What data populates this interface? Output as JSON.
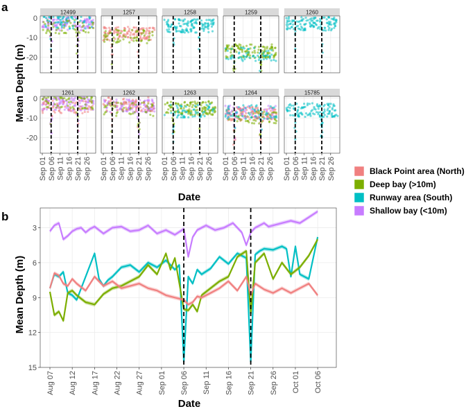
{
  "colors": {
    "north": "#F08080",
    "deep": "#7CAE00",
    "runway": "#00BFC4",
    "shallow": "#C77CFF",
    "strip_bg": "#d9d9d9",
    "grid": "#ebebeb",
    "panel_border": "#333333"
  },
  "legend": [
    {
      "key": "north",
      "label": "Black Point area (North)"
    },
    {
      "key": "deep",
      "label": "Deep bay (>10m)"
    },
    {
      "key": "runway",
      "label": "Runway area (South)"
    },
    {
      "key": "shallow",
      "label": "Shallow bay (<10m)"
    }
  ],
  "chart_data": [
    {
      "panel": "a",
      "type": "scatter",
      "facets": [
        "12499",
        "1257",
        "1258",
        "1259",
        "1260",
        "1261",
        "1262",
        "1263",
        "1264",
        "15785"
      ],
      "facet_group": {
        "12499": [
          "shallow",
          "deep",
          "runway"
        ],
        "1257": [
          "north",
          "deep"
        ],
        "1258": [
          "runway"
        ],
        "1259": [
          "deep",
          "runway"
        ],
        "1260": [
          "runway"
        ],
        "1261": [
          "shallow",
          "north",
          "deep"
        ],
        "1262": [
          "shallow",
          "deep",
          "north"
        ],
        "1263": [
          "deep",
          "runway"
        ],
        "1264": [
          "north",
          "deep",
          "shallow",
          "runway"
        ],
        "15785": [
          "runway"
        ]
      },
      "facet_mean_depth": {
        "12499": -3,
        "1257": -8,
        "1258": -4,
        "1259": -17,
        "1260": -3,
        "1261": -3,
        "1262": -4,
        "1263": -5,
        "1264": -8,
        "15785": -6
      },
      "ylabel": "Mean Depth (m)",
      "xlabel": "Date",
      "ylim": [
        -28,
        1
      ],
      "yticks": [
        0,
        -10,
        -20
      ],
      "xticks": [
        "Sep 01",
        "Sep 06",
        "Sep 11",
        "Sep 16",
        "Sep 21",
        "Sep 26"
      ],
      "dashed_dates": [
        "Sep 06",
        "Sep 21"
      ],
      "xrange_days": [
        0,
        29
      ]
    },
    {
      "panel": "b",
      "type": "line",
      "ylabel": "Mean Depth (m)",
      "xlabel": "Date",
      "ylim": [
        15,
        1.3
      ],
      "yticks": [
        3,
        6,
        9,
        12,
        15
      ],
      "xticks": [
        "Aug 07",
        "Aug 12",
        "Aug 17",
        "Aug 22",
        "Aug 27",
        "Sep 01",
        "Sep 06",
        "Sep 11",
        "Sep 16",
        "Sep 21",
        "Sep 26",
        "Oct 01",
        "Oct 06"
      ],
      "dashed_dates": [
        "Sep 06",
        "Sep 21"
      ],
      "x_start_day": 0,
      "series": [
        {
          "key": "shallow",
          "name": "Shallow bay (<10m)",
          "x": [
            0,
            1,
            2,
            3,
            4,
            5,
            6,
            7,
            8,
            9,
            10,
            12,
            14,
            16,
            18,
            20,
            22,
            24,
            26,
            28,
            30,
            31,
            32,
            33,
            34,
            35,
            37,
            39,
            41,
            43,
            44,
            45,
            46,
            47,
            48,
            49,
            50,
            52,
            54,
            56,
            58,
            60
          ],
          "y": [
            3.3,
            2.8,
            2.6,
            4.0,
            3.7,
            3.3,
            3.1,
            3.0,
            3.4,
            3.1,
            2.9,
            3.5,
            3.0,
            2.9,
            3.3,
            3.2,
            2.8,
            3.5,
            3.2,
            3.6,
            3.1,
            5.5,
            3.8,
            3.2,
            3.0,
            2.8,
            3.2,
            3.0,
            2.6,
            3.4,
            4.5,
            3.4,
            3.0,
            2.8,
            2.6,
            2.9,
            2.8,
            2.6,
            2.4,
            2.6,
            2.1,
            1.6
          ]
        },
        {
          "key": "runway",
          "name": "Runway area (South)",
          "x": [
            0,
            1,
            2,
            3,
            4,
            5,
            6,
            8,
            10,
            11,
            12,
            13,
            14,
            16,
            18,
            20,
            22,
            24,
            26,
            28,
            29,
            30,
            31,
            32,
            33,
            34,
            36,
            38,
            40,
            42,
            44,
            45,
            46,
            47,
            48,
            50,
            52,
            53,
            54,
            55,
            56,
            58,
            60
          ],
          "y": [
            8.2,
            7.0,
            7.2,
            6.8,
            8.6,
            8.8,
            9.2,
            7.2,
            5.2,
            7.4,
            8.0,
            7.5,
            7.2,
            6.4,
            6.2,
            6.8,
            6.0,
            6.4,
            5.8,
            6.6,
            6.2,
            14.5,
            7.2,
            7.8,
            6.6,
            7.0,
            6.5,
            5.5,
            6.1,
            5.2,
            5.6,
            14.5,
            5.3,
            5.0,
            4.8,
            4.9,
            4.6,
            4.8,
            7.2,
            4.6,
            7.0,
            7.4,
            3.8
          ]
        },
        {
          "key": "deep",
          "name": "Deep bay (>10m)",
          "x": [
            0,
            1,
            2,
            3,
            4,
            5,
            6,
            8,
            10,
            12,
            14,
            16,
            18,
            20,
            22,
            24,
            26,
            27,
            28,
            30,
            31,
            32,
            33,
            34,
            36,
            38,
            40,
            42,
            44,
            45,
            46,
            48,
            50,
            52,
            54,
            56,
            58,
            60
          ],
          "y": [
            8.5,
            10.5,
            10.2,
            11.0,
            8.6,
            8.4,
            8.8,
            9.4,
            9.6,
            8.7,
            8.2,
            8.0,
            7.6,
            7.2,
            6.2,
            7.0,
            5.2,
            6.6,
            5.6,
            10.0,
            10.1,
            9.6,
            10.2,
            8.8,
            8.2,
            7.6,
            7.2,
            5.5,
            5.0,
            10.4,
            6.0,
            5.2,
            7.4,
            6.0,
            7.0,
            6.4,
            5.4,
            4.0
          ]
        },
        {
          "key": "north",
          "name": "Black Point area (North)",
          "x": [
            0,
            1,
            2,
            3,
            4,
            5,
            6,
            8,
            10,
            12,
            14,
            16,
            18,
            20,
            22,
            24,
            26,
            28,
            30,
            31,
            32,
            33,
            34,
            36,
            38,
            40,
            42,
            44,
            45,
            46,
            48,
            50,
            52,
            54,
            56,
            58,
            60
          ],
          "y": [
            8.2,
            6.9,
            7.1,
            7.8,
            8.0,
            7.4,
            7.8,
            8.4,
            7.2,
            8.0,
            7.6,
            8.2,
            8.0,
            7.8,
            8.2,
            8.4,
            8.8,
            9.0,
            9.2,
            9.6,
            9.4,
            8.9,
            9.0,
            8.6,
            8.2,
            7.6,
            8.4,
            7.2,
            8.8,
            7.8,
            8.3,
            8.6,
            8.2,
            8.6,
            8.2,
            7.8,
            8.8
          ]
        }
      ]
    }
  ],
  "labels": {
    "panel_a": "a",
    "panel_b": "b",
    "ylabel_a": "Mean Depth (m)",
    "xlabel_a": "Date",
    "ylabel_b": "Mean Depth (m)",
    "xlabel_b": "Date"
  }
}
